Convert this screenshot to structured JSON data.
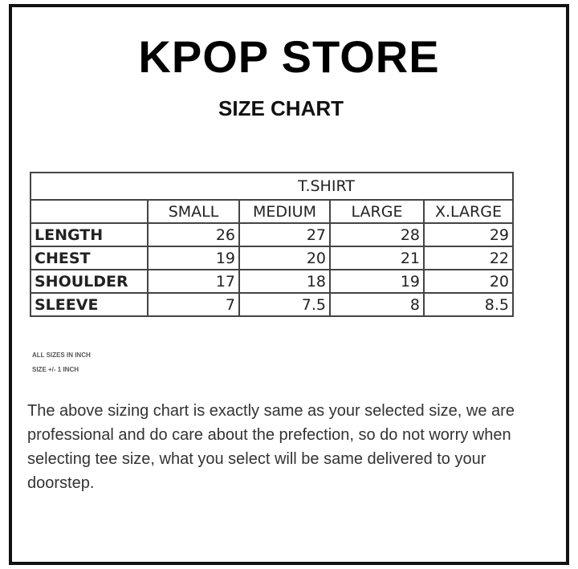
{
  "title": "KPOP STORE",
  "subtitle": "SIZE CHART",
  "table": {
    "caption": "T.SHIRT",
    "columns": [
      "SMALL",
      "MEDIUM",
      "LARGE",
      "X.LARGE"
    ],
    "rows": [
      {
        "label": "LENGTH",
        "values": [
          "26",
          "27",
          "28",
          "29"
        ]
      },
      {
        "label": "CHEST",
        "values": [
          "19",
          "20",
          "21",
          "22"
        ]
      },
      {
        "label": "SHOULDER",
        "values": [
          "17",
          "18",
          "19",
          "20"
        ]
      },
      {
        "label": "SLEEVE",
        "values": [
          "7",
          "7.5",
          "8",
          "8.5"
        ]
      }
    ]
  },
  "notes": [
    "ALL SIZES IN INCH",
    "SIZE +/- 1 INCH"
  ],
  "description": "The above sizing chart is exactly same as your selected size, we are professional and do care about the prefection, so do not worry when selecting tee size, what you select will be same delivered to your doorstep."
}
